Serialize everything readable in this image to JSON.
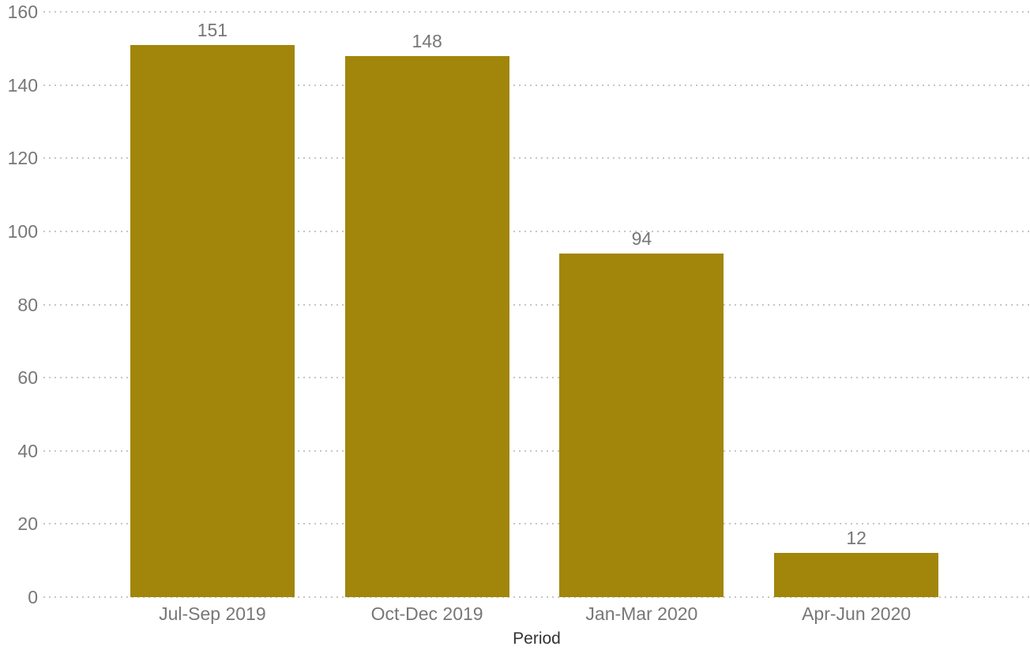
{
  "chart_data": {
    "type": "bar",
    "title": "",
    "xlabel": "Period",
    "ylabel": "",
    "categories": [
      "Jul-Sep 2019",
      "Oct-Dec 2019",
      "Jan-Mar 2020",
      "Apr-Jun 2020"
    ],
    "values": [
      151,
      148,
      94,
      12
    ],
    "data_labels": [
      "151",
      "148",
      "94",
      "12"
    ],
    "ylim": [
      0,
      160
    ],
    "yticks": [
      0,
      20,
      40,
      60,
      80,
      100,
      120,
      140,
      160
    ],
    "ytick_labels": [
      "0",
      "20",
      "40",
      "60",
      "80",
      "100",
      "120",
      "140",
      "160"
    ],
    "grid": "horizontal-dotted",
    "legend_position": "none",
    "colors": {
      "bar": "#A1860B",
      "tick_label": "#777777",
      "data_label": "#777777",
      "category_label": "#777777",
      "axis_title": "#333333",
      "gridline": "#C6C6C6",
      "background": "#FFFFFF"
    }
  }
}
